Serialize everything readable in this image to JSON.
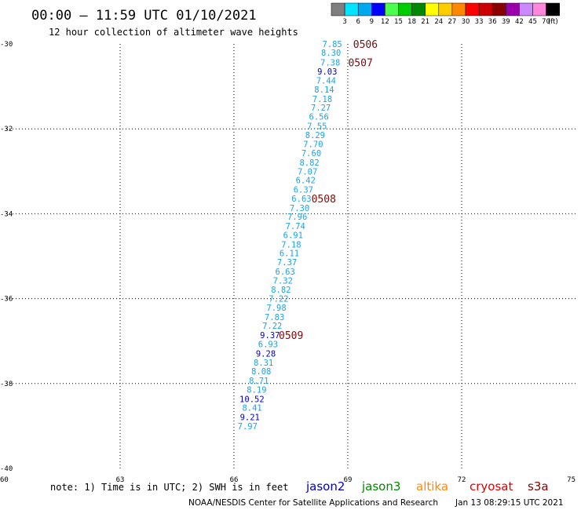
{
  "header": {
    "title": "00:00 – 11:59 UTC 01/10/2021",
    "subtitle": "12 hour collection of altimeter wave heights"
  },
  "legend_scale": {
    "unit": "(ft)",
    "labels": [
      "3",
      "6",
      "9",
      "12",
      "15",
      "18",
      "21",
      "24",
      "27",
      "30",
      "33",
      "36",
      "39",
      "42",
      "45",
      "70"
    ],
    "colors": [
      "#7f7f7f",
      "#00e5ff",
      "#00a8f0",
      "#0000ff",
      "#4cff4c",
      "#00cc00",
      "#008800",
      "#ffff00",
      "#ffcc00",
      "#ff8800",
      "#ff0000",
      "#cc0000",
      "#880000",
      "#9900aa",
      "#cc88ff",
      "#ff88dd",
      "#000000"
    ]
  },
  "footer": {
    "note": "note:  1) Time is in UTC;  2) SWH is in feet",
    "satellites": [
      {
        "name": "jason2",
        "color": "#0000cc"
      },
      {
        "name": "jason3",
        "color": "#008800"
      },
      {
        "name": "altika",
        "color": "#ff8800"
      },
      {
        "name": "cryosat",
        "color": "#dd0000"
      },
      {
        "name": "s3a",
        "color": "#880000"
      }
    ],
    "credit": "NOAA/NESDIS Center for Satellite Applications and Research",
    "timestamp": "Jan 13 08:29:15 UTC 2021"
  },
  "chart_data": {
    "type": "scatter",
    "xlim": [
      60,
      75
    ],
    "ylim": [
      -40,
      -30
    ],
    "x_ticks": [
      "60",
      "63",
      "66",
      "69",
      "72",
      "75"
    ],
    "y_ticks": [
      "-30",
      "-32",
      "-34",
      "-36",
      "-38",
      "-40"
    ],
    "grid": true,
    "points": [
      {
        "label": "7.85",
        "x": 68.85,
        "y": -30.0,
        "color": "#1aa3e6"
      },
      {
        "label": "8.30",
        "x": 68.82,
        "y": -30.2,
        "color": "#1aa3e6"
      },
      {
        "label": "7.38",
        "x": 68.8,
        "y": -30.43,
        "color": "#1aa3e6"
      },
      {
        "label": "9.03",
        "x": 68.72,
        "y": -30.65,
        "color": "#0000cc"
      },
      {
        "label": "7.44",
        "x": 68.69,
        "y": -30.86,
        "color": "#1aa3e6"
      },
      {
        "label": "8.14",
        "x": 68.64,
        "y": -31.07,
        "color": "#1aa3e6"
      },
      {
        "label": "7.18",
        "x": 68.59,
        "y": -31.29,
        "color": "#1aa3e6"
      },
      {
        "label": "7.27",
        "x": 68.55,
        "y": -31.5,
        "color": "#1aa3e6"
      },
      {
        "label": "6.56",
        "x": 68.5,
        "y": -31.71,
        "color": "#1aa3e6"
      },
      {
        "label": "7.55",
        "x": 68.45,
        "y": -31.93,
        "color": "#1aa3e6"
      },
      {
        "label": "8.29",
        "x": 68.4,
        "y": -32.14,
        "color": "#1aa3e6"
      },
      {
        "label": "7.70",
        "x": 68.35,
        "y": -32.36,
        "color": "#1aa3e6"
      },
      {
        "label": "7.60",
        "x": 68.3,
        "y": -32.57,
        "color": "#1aa3e6"
      },
      {
        "label": "8.82",
        "x": 68.25,
        "y": -32.79,
        "color": "#1aa3e6"
      },
      {
        "label": "7.07",
        "x": 68.2,
        "y": -33.0,
        "color": "#1aa3e6"
      },
      {
        "label": "6.42",
        "x": 68.15,
        "y": -33.21,
        "color": "#1aa3e6"
      },
      {
        "label": "6.37",
        "x": 68.09,
        "y": -33.43,
        "color": "#1aa3e6"
      },
      {
        "label": "6.63",
        "x": 68.04,
        "y": -33.64,
        "color": "#1aa3e6"
      },
      {
        "label": "7.30",
        "x": 67.99,
        "y": -33.86,
        "color": "#1aa3e6"
      },
      {
        "label": "7.96",
        "x": 67.93,
        "y": -34.07,
        "color": "#1aa3e6"
      },
      {
        "label": "7.74",
        "x": 67.88,
        "y": -34.29,
        "color": "#1aa3e6"
      },
      {
        "label": "6.91",
        "x": 67.82,
        "y": -34.5,
        "color": "#1aa3e6"
      },
      {
        "label": "7.18",
        "x": 67.77,
        "y": -34.72,
        "color": "#1aa3e6"
      },
      {
        "label": "6.11",
        "x": 67.72,
        "y": -34.93,
        "color": "#1aa3e6"
      },
      {
        "label": "7.37",
        "x": 67.66,
        "y": -35.14,
        "color": "#1aa3e6"
      },
      {
        "label": "6.63",
        "x": 67.61,
        "y": -35.36,
        "color": "#1aa3e6"
      },
      {
        "label": "7.32",
        "x": 67.55,
        "y": -35.57,
        "color": "#1aa3e6"
      },
      {
        "label": "8.82",
        "x": 67.5,
        "y": -35.79,
        "color": "#1aa3e6"
      },
      {
        "label": "7.22",
        "x": 67.44,
        "y": -36.0,
        "color": "#1aa3e6"
      },
      {
        "label": "7.98",
        "x": 67.38,
        "y": -36.21,
        "color": "#1aa3e6"
      },
      {
        "label": "7.83",
        "x": 67.33,
        "y": -36.43,
        "color": "#1aa3e6"
      },
      {
        "label": "7.22",
        "x": 67.27,
        "y": -36.64,
        "color": "#1aa3e6"
      },
      {
        "label": "9.37",
        "x": 67.21,
        "y": -36.86,
        "color": "#0000cc"
      },
      {
        "label": "6.93",
        "x": 67.16,
        "y": -37.07,
        "color": "#1aa3e6"
      },
      {
        "label": "9.28",
        "x": 67.1,
        "y": -37.29,
        "color": "#0000cc"
      },
      {
        "label": "8.31",
        "x": 67.04,
        "y": -37.5,
        "color": "#1aa3e6"
      },
      {
        "label": "8.08",
        "x": 66.98,
        "y": -37.71,
        "color": "#1aa3e6"
      },
      {
        "label": "8.71",
        "x": 66.92,
        "y": -37.93,
        "color": "#1aa3e6"
      },
      {
        "label": "8.19",
        "x": 66.86,
        "y": -38.14,
        "color": "#1aa3e6"
      },
      {
        "label": "10.52",
        "x": 66.8,
        "y": -38.36,
        "color": "#0000cc"
      },
      {
        "label": "8.41",
        "x": 66.74,
        "y": -38.57,
        "color": "#1aa3e6"
      },
      {
        "label": "9.21",
        "x": 66.68,
        "y": -38.79,
        "color": "#0000cc"
      },
      {
        "label": "7.97",
        "x": 66.62,
        "y": -39.0,
        "color": "#1aa3e6"
      }
    ],
    "time_tags": [
      {
        "label": "0506",
        "x": 69.14,
        "y": -30.0
      },
      {
        "label": "0507",
        "x": 69.01,
        "y": -30.43
      },
      {
        "label": "0508",
        "x": 68.04,
        "y": -33.64
      },
      {
        "label": "0509",
        "x": 67.18,
        "y": -36.86
      }
    ]
  }
}
